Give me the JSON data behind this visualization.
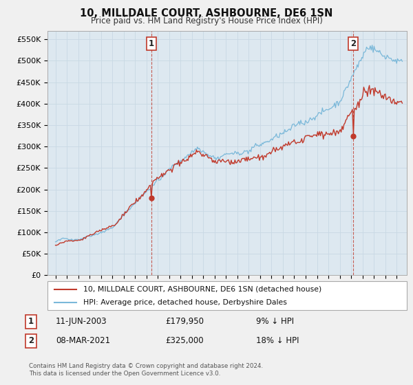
{
  "title": "10, MILLDALE COURT, ASHBOURNE, DE6 1SN",
  "subtitle": "Price paid vs. HM Land Registry's House Price Index (HPI)",
  "ylabel_ticks": [
    "£0",
    "£50K",
    "£100K",
    "£150K",
    "£200K",
    "£250K",
    "£300K",
    "£350K",
    "£400K",
    "£450K",
    "£500K",
    "£550K"
  ],
  "ytick_values": [
    0,
    50000,
    100000,
    150000,
    200000,
    250000,
    300000,
    350000,
    400000,
    450000,
    500000,
    550000
  ],
  "ylim": [
    0,
    570000
  ],
  "hpi_color": "#7ab8d9",
  "price_color": "#c0392b",
  "vline_color": "#c0392b",
  "sale1_x": 2003.44,
  "sale1_price": 179950,
  "sale1_label": "1",
  "sale2_x": 2021.18,
  "sale2_price": 325000,
  "sale2_label": "2",
  "legend_label_price": "10, MILLDALE COURT, ASHBOURNE, DE6 1SN (detached house)",
  "legend_label_hpi": "HPI: Average price, detached house, Derbyshire Dales",
  "note1_label": "1",
  "note1_date": "11-JUN-2003",
  "note1_price": "£179,950",
  "note1_pct": "9% ↓ HPI",
  "note2_label": "2",
  "note2_date": "08-MAR-2021",
  "note2_price": "£325,000",
  "note2_pct": "18% ↓ HPI",
  "footer": "Contains HM Land Registry data © Crown copyright and database right 2024.\nThis data is licensed under the Open Government Licence v3.0.",
  "bg_color": "#f0f0f0",
  "plot_bg_color": "#dde8f0"
}
